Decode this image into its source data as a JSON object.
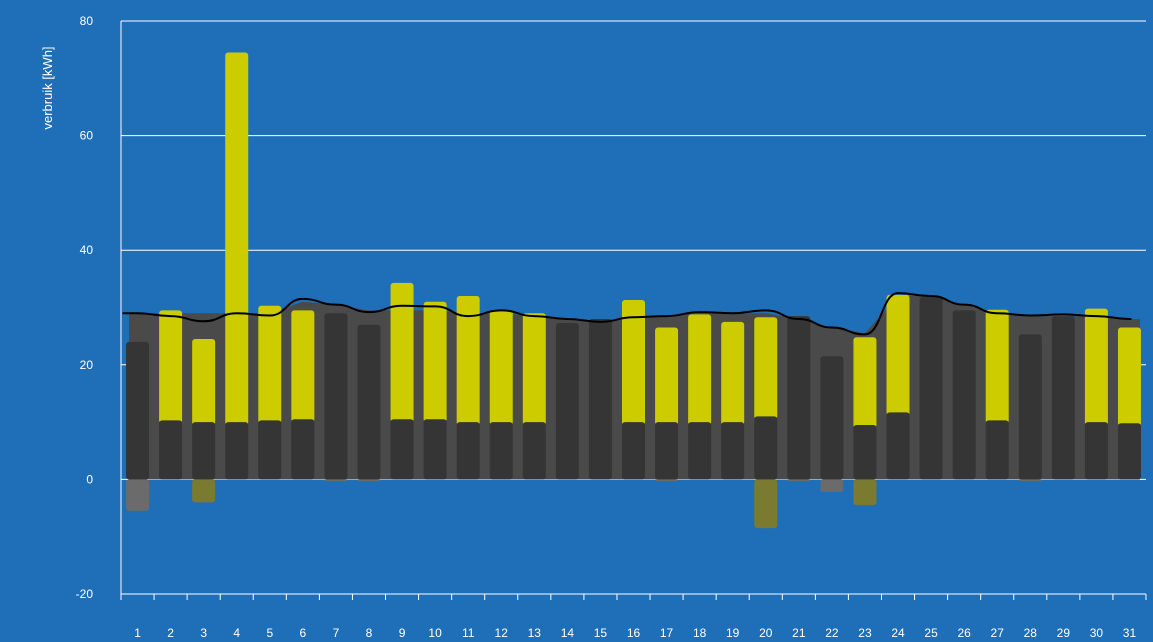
{
  "chart_data": {
    "type": "bar",
    "ylabel": "verbruik [kWh]",
    "ylim": [
      -20,
      80
    ],
    "yticks": [
      -20,
      0,
      20,
      40,
      60,
      80
    ],
    "grid": true,
    "categories": [
      "1",
      "2",
      "3",
      "4",
      "5",
      "6",
      "7",
      "8",
      "9",
      "10",
      "11",
      "12",
      "13",
      "14",
      "15",
      "16",
      "17",
      "18",
      "19",
      "20",
      "21",
      "22",
      "23",
      "24",
      "25",
      "26",
      "27",
      "28",
      "29",
      "30",
      "31"
    ],
    "series": [
      {
        "values": [
          24.0,
          10.3,
          10.0,
          10.0,
          10.3,
          10.5,
          29.0,
          27.0,
          10.5,
          10.5,
          10.0,
          10.0,
          10.0,
          27.3,
          28.0,
          10.0,
          10.0,
          10.0,
          10.0,
          11.0,
          28.5,
          21.5,
          9.5,
          11.7,
          31.8,
          29.5,
          10.3,
          25.3,
          28.5,
          10.0,
          9.8
        ]
      },
      {
        "values": [
          0,
          19.2,
          14.5,
          64.5,
          20.0,
          19.0,
          0,
          0,
          23.8,
          20.5,
          22.0,
          19.5,
          19.0,
          0,
          0,
          21.3,
          16.5,
          18.8,
          17.5,
          17.3,
          0,
          0,
          15.3,
          20.5,
          0,
          0,
          19.3,
          0,
          0,
          19.8,
          16.7
        ]
      },
      {
        "values": [
          -5.5,
          0,
          0,
          0,
          0,
          0,
          -0.3,
          -0.3,
          0,
          0,
          0,
          0,
          0,
          0,
          0,
          0,
          -0.3,
          0,
          0,
          0,
          -0.3,
          -2.2,
          0,
          0,
          0,
          0,
          0,
          -0.3,
          0,
          0,
          0
        ]
      },
      {
        "values": [
          0,
          0,
          -4.0,
          0,
          0,
          0,
          0,
          0,
          0,
          0,
          0,
          0,
          0,
          0,
          0,
          0,
          0,
          0,
          0,
          -8.5,
          0,
          0,
          -4.5,
          0,
          0,
          0,
          0,
          0,
          0,
          0,
          0
        ]
      },
      {
        "values": [
          29.0,
          28.5,
          27.6,
          29.0,
          28.6,
          31.5,
          30.5,
          29.2,
          30.3,
          30.2,
          28.5,
          29.5,
          28.5,
          28.0,
          27.5,
          28.3,
          28.5,
          29.2,
          29.0,
          29.5,
          28.0,
          26.5,
          25.3,
          32.5,
          32.0,
          30.5,
          29.0,
          28.6,
          28.8,
          28.5,
          28.0
        ]
      },
      {
        "values": [
          29.0,
          29.0,
          29.0,
          29.0,
          29.0,
          31.0,
          30.5,
          29.5,
          29.5,
          29.5,
          29.0,
          29.0,
          28.5,
          28.0,
          27.5,
          28.3,
          28.5,
          29.0,
          29.0,
          29.0,
          28.0,
          26.5,
          25.5,
          32.0,
          32.0,
          30.5,
          29.0,
          28.5,
          28.5,
          28.5,
          28.0
        ]
      }
    ],
    "colors": {
      "background": "#1f6fb8",
      "grid": "#ffffff",
      "base_bar": "#353535",
      "yellow_bar": "#cccc00",
      "negative_grey": "#6b6b6b",
      "negative_olive": "#7a7a30",
      "band": "#4a4a4a",
      "line": "#000000",
      "text": "#ffffff"
    }
  }
}
